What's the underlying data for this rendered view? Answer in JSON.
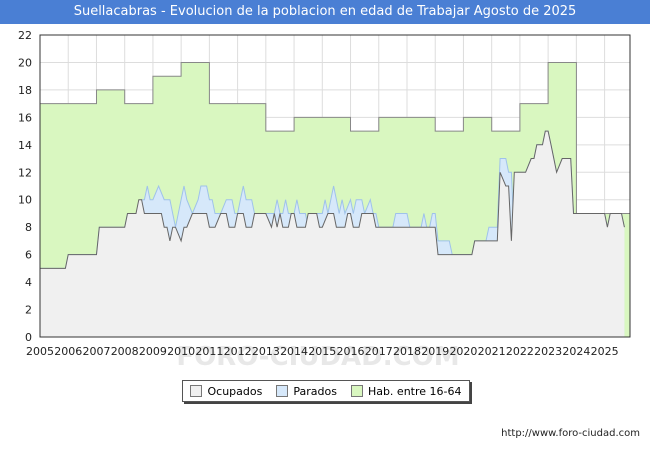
{
  "title": "Suellacabras - Evolucion de la poblacion en edad de Trabajar Agosto de 2025",
  "watermark": "FORO-CIUDAD.COM",
  "footer_url": "http://www.foro-ciudad.com",
  "legend": [
    {
      "label": "Ocupados",
      "color": "#f0f0f0"
    },
    {
      "label": "Parados",
      "color": "#d6e8fa"
    },
    {
      "label": "Hab. entre 16-64",
      "color": "#d9f7c0"
    }
  ],
  "chart_data": {
    "type": "area",
    "title": "Suellacabras - Evolucion de la poblacion en edad de Trabajar Agosto de 2025",
    "xlabel": "",
    "ylabel": "",
    "xlim": [
      2005,
      2025.9
    ],
    "ylim": [
      0,
      22
    ],
    "x_ticks": [
      "2005",
      "2006",
      "2007",
      "2008",
      "2009",
      "2010",
      "2011",
      "2012",
      "2013",
      "2014",
      "2015",
      "2016",
      "2017",
      "2018",
      "2019",
      "2020",
      "2021",
      "2022",
      "2023",
      "2024",
      "2025"
    ],
    "y_ticks": [
      0,
      2,
      4,
      6,
      8,
      10,
      12,
      14,
      16,
      18,
      20,
      22
    ],
    "grid": true,
    "legend_position": "bottom-center",
    "series": [
      {
        "name": "Hab. entre 16-64",
        "color": "#d9f7c0",
        "stroke": "#888888",
        "step": true,
        "points": [
          [
            2005,
            17
          ],
          [
            2007,
            18
          ],
          [
            2008,
            17
          ],
          [
            2009,
            19
          ],
          [
            2010,
            20
          ],
          [
            2011,
            17
          ],
          [
            2013,
            15
          ],
          [
            2014,
            16
          ],
          [
            2016,
            15
          ],
          [
            2017,
            16
          ],
          [
            2019,
            15
          ],
          [
            2020,
            16
          ],
          [
            2021,
            15
          ],
          [
            2022,
            17
          ],
          [
            2023,
            20
          ],
          [
            2024,
            9
          ],
          [
            2025.9,
            9
          ]
        ]
      },
      {
        "name": "Parados",
        "color": "#d6e8fa",
        "stroke": "#9fc2ea",
        "step": false,
        "points": [
          [
            2005,
            5
          ],
          [
            2005.9,
            5
          ],
          [
            2006,
            6
          ],
          [
            2007,
            6
          ],
          [
            2007.1,
            8
          ],
          [
            2008,
            8
          ],
          [
            2008.1,
            9
          ],
          [
            2008.5,
            9
          ],
          [
            2008.6,
            10
          ],
          [
            2008.7,
            10
          ],
          [
            2008.8,
            11
          ],
          [
            2008.9,
            10
          ],
          [
            2009,
            10
          ],
          [
            2009.2,
            11
          ],
          [
            2009.4,
            10
          ],
          [
            2009.6,
            10
          ],
          [
            2009.7,
            9
          ],
          [
            2009.8,
            8
          ],
          [
            2010,
            10
          ],
          [
            2010.1,
            11
          ],
          [
            2010.2,
            10
          ],
          [
            2010.4,
            9
          ],
          [
            2010.6,
            10
          ],
          [
            2010.7,
            11
          ],
          [
            2010.9,
            11
          ],
          [
            2011,
            10
          ],
          [
            2011.1,
            10
          ],
          [
            2011.2,
            9
          ],
          [
            2011.4,
            9
          ],
          [
            2011.6,
            10
          ],
          [
            2011.8,
            10
          ],
          [
            2011.9,
            9
          ],
          [
            2012,
            9
          ],
          [
            2012.1,
            10
          ],
          [
            2012.2,
            11
          ],
          [
            2012.3,
            10
          ],
          [
            2012.5,
            10
          ],
          [
            2012.6,
            9
          ],
          [
            2013,
            9
          ],
          [
            2013.3,
            9
          ],
          [
            2013.4,
            10
          ],
          [
            2013.5,
            9
          ],
          [
            2013.6,
            9
          ],
          [
            2013.7,
            10
          ],
          [
            2013.8,
            9
          ],
          [
            2014,
            9
          ],
          [
            2014.1,
            10
          ],
          [
            2014.2,
            9
          ],
          [
            2014.4,
            9
          ],
          [
            2014.5,
            8
          ],
          [
            2014.8,
            9
          ],
          [
            2015,
            9
          ],
          [
            2015.1,
            10
          ],
          [
            2015.2,
            9
          ],
          [
            2015.3,
            10
          ],
          [
            2015.4,
            11
          ],
          [
            2015.5,
            10
          ],
          [
            2015.6,
            9
          ],
          [
            2015.7,
            10
          ],
          [
            2015.8,
            9
          ],
          [
            2016,
            10
          ],
          [
            2016.1,
            9
          ],
          [
            2016.2,
            10
          ],
          [
            2016.4,
            10
          ],
          [
            2016.5,
            9
          ],
          [
            2016.7,
            10
          ],
          [
            2016.8,
            9
          ],
          [
            2016.9,
            9
          ],
          [
            2017,
            8
          ],
          [
            2017.5,
            8
          ],
          [
            2017.6,
            9
          ],
          [
            2018,
            9
          ],
          [
            2018.1,
            8
          ],
          [
            2018.5,
            8
          ],
          [
            2018.6,
            9
          ],
          [
            2018.7,
            8
          ],
          [
            2018.8,
            8
          ],
          [
            2018.9,
            9
          ],
          [
            2019,
            9
          ],
          [
            2019.1,
            7
          ],
          [
            2019.5,
            7
          ],
          [
            2019.6,
            6
          ],
          [
            2020.3,
            6
          ],
          [
            2020.4,
            7
          ],
          [
            2020.8,
            7
          ],
          [
            2020.9,
            8
          ],
          [
            2021.2,
            8
          ],
          [
            2021.3,
            13
          ],
          [
            2021.5,
            13
          ],
          [
            2021.6,
            12
          ],
          [
            2021.7,
            12
          ],
          [
            2021.8,
            7
          ],
          [
            2021.9,
            12
          ],
          [
            2022.2,
            12
          ],
          [
            2022.4,
            13
          ],
          [
            2022.5,
            13
          ],
          [
            2022.6,
            14
          ],
          [
            2022.8,
            14
          ],
          [
            2022.9,
            15
          ],
          [
            2023,
            15
          ],
          [
            2023.1,
            14
          ],
          [
            2023.2,
            13
          ],
          [
            2023.3,
            12
          ],
          [
            2023.5,
            13
          ],
          [
            2023.8,
            13
          ],
          [
            2023.9,
            9
          ],
          [
            2025,
            9
          ],
          [
            2025.1,
            8
          ],
          [
            2025.2,
            9
          ],
          [
            2025.6,
            9
          ],
          [
            2025.7,
            8
          ]
        ]
      },
      {
        "name": "Ocupados",
        "color": "#f0f0f0",
        "stroke": "#666666",
        "step": false,
        "points": [
          [
            2005,
            5
          ],
          [
            2005.9,
            5
          ],
          [
            2006,
            6
          ],
          [
            2007,
            6
          ],
          [
            2007.1,
            8
          ],
          [
            2008,
            8
          ],
          [
            2008.1,
            9
          ],
          [
            2008.4,
            9
          ],
          [
            2008.5,
            10
          ],
          [
            2008.6,
            10
          ],
          [
            2008.7,
            9
          ],
          [
            2009,
            9
          ],
          [
            2009.3,
            9
          ],
          [
            2009.4,
            8
          ],
          [
            2009.5,
            8
          ],
          [
            2009.6,
            7
          ],
          [
            2009.7,
            8
          ],
          [
            2009.8,
            8
          ],
          [
            2010,
            7
          ],
          [
            2010.1,
            8
          ],
          [
            2010.2,
            8
          ],
          [
            2010.4,
            9
          ],
          [
            2010.9,
            9
          ],
          [
            2011,
            8
          ],
          [
            2011.2,
            8
          ],
          [
            2011.4,
            9
          ],
          [
            2011.6,
            9
          ],
          [
            2011.7,
            8
          ],
          [
            2011.9,
            8
          ],
          [
            2012,
            9
          ],
          [
            2012.2,
            9
          ],
          [
            2012.3,
            8
          ],
          [
            2012.5,
            8
          ],
          [
            2012.6,
            9
          ],
          [
            2013,
            9
          ],
          [
            2013.2,
            8
          ],
          [
            2013.3,
            9
          ],
          [
            2013.4,
            8
          ],
          [
            2013.5,
            9
          ],
          [
            2013.6,
            8
          ],
          [
            2013.8,
            8
          ],
          [
            2013.9,
            9
          ],
          [
            2014,
            9
          ],
          [
            2014.1,
            8
          ],
          [
            2014.4,
            8
          ],
          [
            2014.5,
            9
          ],
          [
            2014.8,
            9
          ],
          [
            2014.9,
            8
          ],
          [
            2015,
            8
          ],
          [
            2015.2,
            9
          ],
          [
            2015.4,
            9
          ],
          [
            2015.5,
            8
          ],
          [
            2015.8,
            8
          ],
          [
            2015.9,
            9
          ],
          [
            2016,
            9
          ],
          [
            2016.1,
            8
          ],
          [
            2016.3,
            8
          ],
          [
            2016.4,
            9
          ],
          [
            2016.8,
            9
          ],
          [
            2016.9,
            8
          ],
          [
            2017,
            8
          ],
          [
            2018.8,
            8
          ],
          [
            2018.9,
            8
          ],
          [
            2019,
            8
          ],
          [
            2019.1,
            6
          ],
          [
            2020.3,
            6
          ],
          [
            2020.4,
            7
          ],
          [
            2020.8,
            7
          ],
          [
            2020.9,
            7
          ],
          [
            2021.2,
            7
          ],
          [
            2021.3,
            12
          ],
          [
            2021.5,
            11
          ],
          [
            2021.6,
            11
          ],
          [
            2021.7,
            7
          ],
          [
            2021.8,
            12
          ],
          [
            2022.2,
            12
          ],
          [
            2022.4,
            13
          ],
          [
            2022.5,
            13
          ],
          [
            2022.6,
            14
          ],
          [
            2022.8,
            14
          ],
          [
            2022.9,
            15
          ],
          [
            2023,
            15
          ],
          [
            2023.1,
            14
          ],
          [
            2023.2,
            13
          ],
          [
            2023.3,
            12
          ],
          [
            2023.5,
            13
          ],
          [
            2023.8,
            13
          ],
          [
            2023.9,
            9
          ],
          [
            2025,
            9
          ],
          [
            2025.1,
            8
          ],
          [
            2025.2,
            9
          ],
          [
            2025.6,
            9
          ],
          [
            2025.7,
            8
          ]
        ]
      }
    ]
  }
}
